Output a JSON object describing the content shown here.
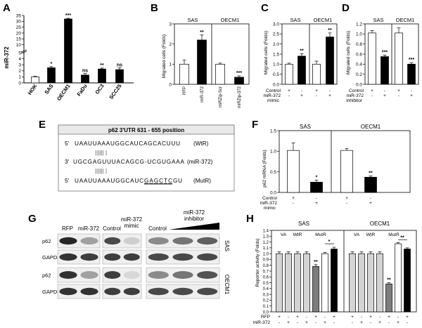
{
  "panels": {
    "A": {
      "letter": "A"
    },
    "B": {
      "letter": "B"
    },
    "C": {
      "letter": "C"
    },
    "D": {
      "letter": "D"
    },
    "E": {
      "letter": "E"
    },
    "F": {
      "letter": "F"
    },
    "G": {
      "letter": "G"
    },
    "H": {
      "letter": "H"
    }
  },
  "chart_data": [
    {
      "id": "A",
      "type": "bar",
      "ylabel": "miR-372",
      "categories": [
        "HOK",
        "SAS",
        "OECM1",
        "FaDu",
        "OC3",
        "SCC25"
      ],
      "values": [
        1.0,
        2.5,
        32,
        1.3,
        2.3,
        2.2
      ],
      "errors": [
        0.1,
        0.2,
        0.6,
        0.25,
        0.15,
        0.3
      ],
      "significance": [
        "",
        "*",
        "***",
        "ns",
        "**",
        "ns"
      ],
      "yticks": [
        "0",
        "1",
        "2",
        "3",
        "4",
        "5",
        "10",
        "15",
        "20",
        "25",
        "30",
        "35"
      ],
      "ylim": [
        0,
        35
      ]
    },
    {
      "id": "B",
      "type": "bar",
      "ylabel": "Migrated cells (Folds)",
      "groups": [
        "SAS",
        "OECM1"
      ],
      "categories": [
        "RFP",
        "miR-372",
        "miRZip-Scr",
        "miRZip-372"
      ],
      "values": [
        1.0,
        2.2,
        1.0,
        0.35
      ],
      "errors": [
        0.2,
        0.25,
        0.05,
        0.07
      ],
      "fills": [
        "white",
        "black",
        "white",
        "black"
      ],
      "significance": [
        "",
        "**",
        "",
        "***"
      ],
      "yticks": [
        "0",
        "1",
        "2",
        "3"
      ],
      "ylim": [
        0,
        3
      ]
    },
    {
      "id": "C",
      "type": "bar",
      "ylabel": "Migrated cells (Folds)",
      "groups": [
        "SAS",
        "OECM1"
      ],
      "values": [
        1.0,
        1.4,
        1.0,
        2.35
      ],
      "errors": [
        0.05,
        0.12,
        0.15,
        0.2
      ],
      "fills": [
        "white",
        "black",
        "white",
        "black"
      ],
      "significance": [
        "",
        "**",
        "",
        "**"
      ],
      "yticks": [
        "0.0",
        "0.5",
        "1.0",
        "1.5",
        "2.0",
        "2.5",
        "3.0"
      ],
      "ylim": [
        0,
        3
      ],
      "treatment_rows": [
        {
          "label": "Control",
          "signs": [
            "+",
            "-",
            "+",
            "-"
          ]
        },
        {
          "label": "miR-372",
          "signs": [
            "-",
            "+",
            "-",
            "+"
          ]
        }
      ],
      "treatment_footer": "mimic"
    },
    {
      "id": "D",
      "type": "bar",
      "ylabel": "Migrated cells (Folds)",
      "groups": [
        "SAS",
        "OECM1"
      ],
      "values": [
        1.02,
        0.55,
        1.02,
        0.4
      ],
      "errors": [
        0.05,
        0.03,
        0.1,
        0.03
      ],
      "fills": [
        "white",
        "black",
        "white",
        "black"
      ],
      "significance": [
        "",
        "***",
        "",
        "***"
      ],
      "yticks": [
        "0.0",
        "0.2",
        "0.4",
        "0.6",
        "0.8",
        "1.0",
        "1.2"
      ],
      "ylim": [
        0,
        1.2
      ],
      "treatment_rows": [
        {
          "label": "Control",
          "signs": [
            "+",
            "-",
            "+",
            "-"
          ]
        },
        {
          "label": "miR-372",
          "signs": [
            "-",
            "+",
            "-",
            "+"
          ]
        }
      ],
      "treatment_footer": "inhibitor"
    },
    {
      "id": "F",
      "type": "bar",
      "ylabel": "p62 mRNA (Folds)",
      "groups": [
        "SAS",
        "OECM1"
      ],
      "values": [
        1.02,
        0.25,
        1.02,
        0.37
      ],
      "errors": [
        0.18,
        0.05,
        0.05,
        0.03
      ],
      "fills": [
        "white",
        "black",
        "white",
        "black"
      ],
      "significance": [
        "",
        "*",
        "",
        "**"
      ],
      "yticks": [
        "0.0",
        "0.5",
        "1.0",
        "1.5"
      ],
      "ylim": [
        0,
        1.5
      ],
      "treatment_rows": [
        {
          "label": "Control",
          "signs": [
            "+",
            "-",
            "+",
            "-"
          ]
        },
        {
          "label": "miR-372",
          "signs": [
            "-",
            "+",
            "-",
            "+"
          ]
        }
      ],
      "treatment_footer": "mimic"
    },
    {
      "id": "H",
      "type": "bar",
      "ylabel": "Reporter activity (Folds)",
      "groups": [
        "SAS",
        "OECM1"
      ],
      "subgroups": [
        "VA",
        "WtR",
        "MutR"
      ],
      "values": [
        1.0,
        1.0,
        1.0,
        1.0,
        0.78,
        1.0,
        1.08,
        1.0,
        1.0,
        1.0,
        1.0,
        0.48,
        1.17,
        1.08
      ],
      "errors": [
        0.03,
        0.03,
        0.03,
        0.03,
        0.03,
        0.02,
        0.03,
        0.03,
        0.03,
        0.03,
        0.03,
        0.02,
        0.02,
        0.02
      ],
      "fills": [
        "light",
        "light",
        "light",
        "light",
        "dark",
        "white",
        "black",
        "light",
        "light",
        "light",
        "light",
        "dark",
        "white",
        "black"
      ],
      "significance_bars": [
        "**",
        "*",
        "**",
        "**"
      ],
      "yticks": [
        "0.0",
        "0.1",
        "0.2",
        "0.3",
        "0.4",
        "0.5",
        "0.6",
        "0.7",
        "0.8",
        "0.9",
        "1.0",
        "1.1",
        "1.2",
        "1.3",
        "1.4"
      ],
      "ylim": [
        0,
        1.4
      ],
      "treatment_rows": [
        {
          "label": "RFP",
          "signs": [
            "+",
            "-",
            "+",
            "-",
            "+",
            "-",
            "+",
            "+",
            "-",
            "+",
            "-",
            "+",
            "-",
            "+"
          ]
        },
        {
          "label": "miR-372",
          "signs": [
            "-",
            "+",
            "-",
            "+",
            "-",
            "+",
            "-",
            "-",
            "+",
            "-",
            "+",
            "-",
            "+",
            "-"
          ]
        }
      ]
    }
  ],
  "panel_E": {
    "title": "p62 3'UTR 631 - 655 position",
    "line1": {
      "prefix": "5'",
      "seq": "UAAUUAAAUGGCAUCAGCACUUU",
      "tag": "(WtR)"
    },
    "pairs1": "||||||  |",
    "line2": {
      "prefix": "3'",
      "seq": "UGCGAGUUUACAGCG-UCGUGAAA",
      "tag": "(miR-372)"
    },
    "pairs2": "||||||  |",
    "line3": {
      "prefix": "5'",
      "seq_plain": "UAAUUAAAUGGCAUC",
      "seq_underlined": "GAGCTC",
      "seq_tail": "GU",
      "tag": "(MutR)"
    }
  },
  "panel_G": {
    "col_labels": {
      "rfp": "RFP",
      "mir": "miR-372",
      "control": "Control",
      "mimic": "miR-372\nmimic",
      "control2": "Control",
      "inhibitor": "miR-372\ninhibitor"
    },
    "rows": [
      "p62",
      "GAPDH",
      "p62",
      "GAPDH"
    ],
    "cell_labels": [
      "SAS",
      "OECM1"
    ]
  }
}
